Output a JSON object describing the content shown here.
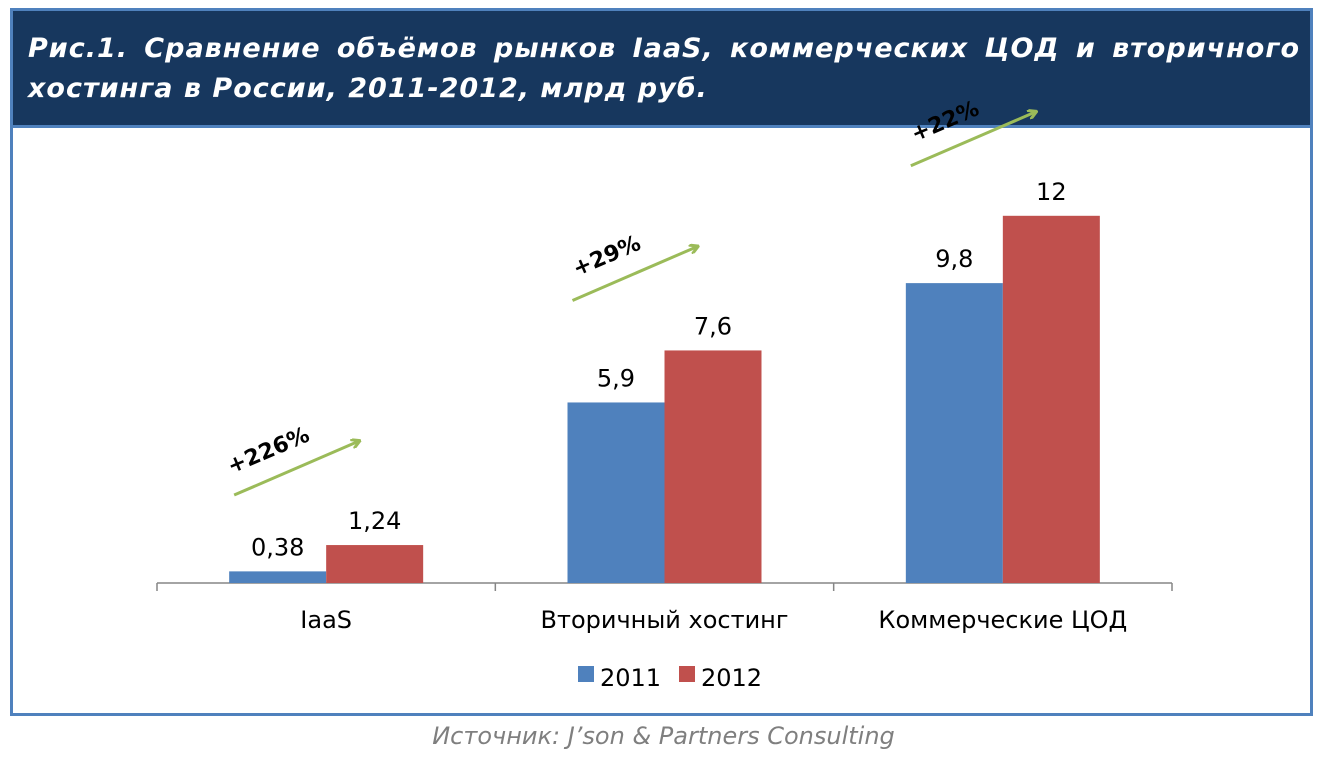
{
  "title": "Рис.1. Сравнение объёмов рынков IaaS, коммерческих ЦОД и вторичного хостинга в России, 2011-2012, млрд руб.",
  "source": "Источник: J’son & Partners Consulting",
  "colors": {
    "header_bg": "#17375e",
    "border": "#4f81bd",
    "series_2011": "#4f81bd",
    "series_2012": "#c0504d",
    "arrow": "#9bbb59"
  },
  "chart_data": {
    "type": "bar",
    "title": "Сравнение объёмов рынков IaaS, коммерческих ЦОД и вторичного хостинга в России, 2011-2012, млрд руб.",
    "categories": [
      "IaaS",
      "Вторичный хостинг",
      "Коммерческие ЦОД"
    ],
    "series": [
      {
        "name": "2011",
        "values": [
          0.38,
          5.9,
          9.8
        ],
        "labels": [
          "0,38",
          "5,9",
          "9,8"
        ],
        "color": "#4f81bd"
      },
      {
        "name": "2012",
        "values": [
          1.24,
          7.6,
          12
        ],
        "labels": [
          "1,24",
          "7,6",
          "12"
        ],
        "color": "#c0504d"
      }
    ],
    "growth": [
      "+226%",
      "+29%",
      "+22%"
    ],
    "ylim": [
      0,
      12
    ],
    "xlabel": "",
    "ylabel": "",
    "grid": false,
    "legend": "bottom"
  }
}
